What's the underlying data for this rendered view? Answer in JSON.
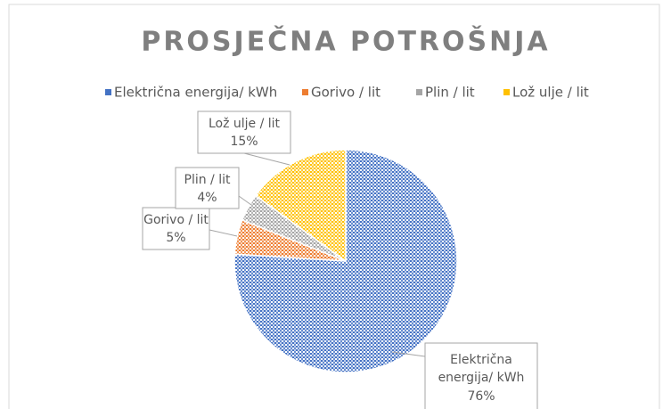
{
  "chart_data": {
    "type": "pie",
    "title": "PROSJEČNA POTROŠNJA",
    "categories": [
      "Električna energija/ kWh",
      "Gorivo / lit",
      "Plin / lit",
      "Lož ulje / lit"
    ],
    "values": [
      76,
      5,
      4,
      15
    ],
    "value_labels": [
      "76%",
      "5%",
      "4%",
      "15%"
    ],
    "colors": [
      "#4472c4",
      "#ed7d31",
      "#a5a5a5",
      "#ffc000"
    ],
    "legend": "top"
  }
}
